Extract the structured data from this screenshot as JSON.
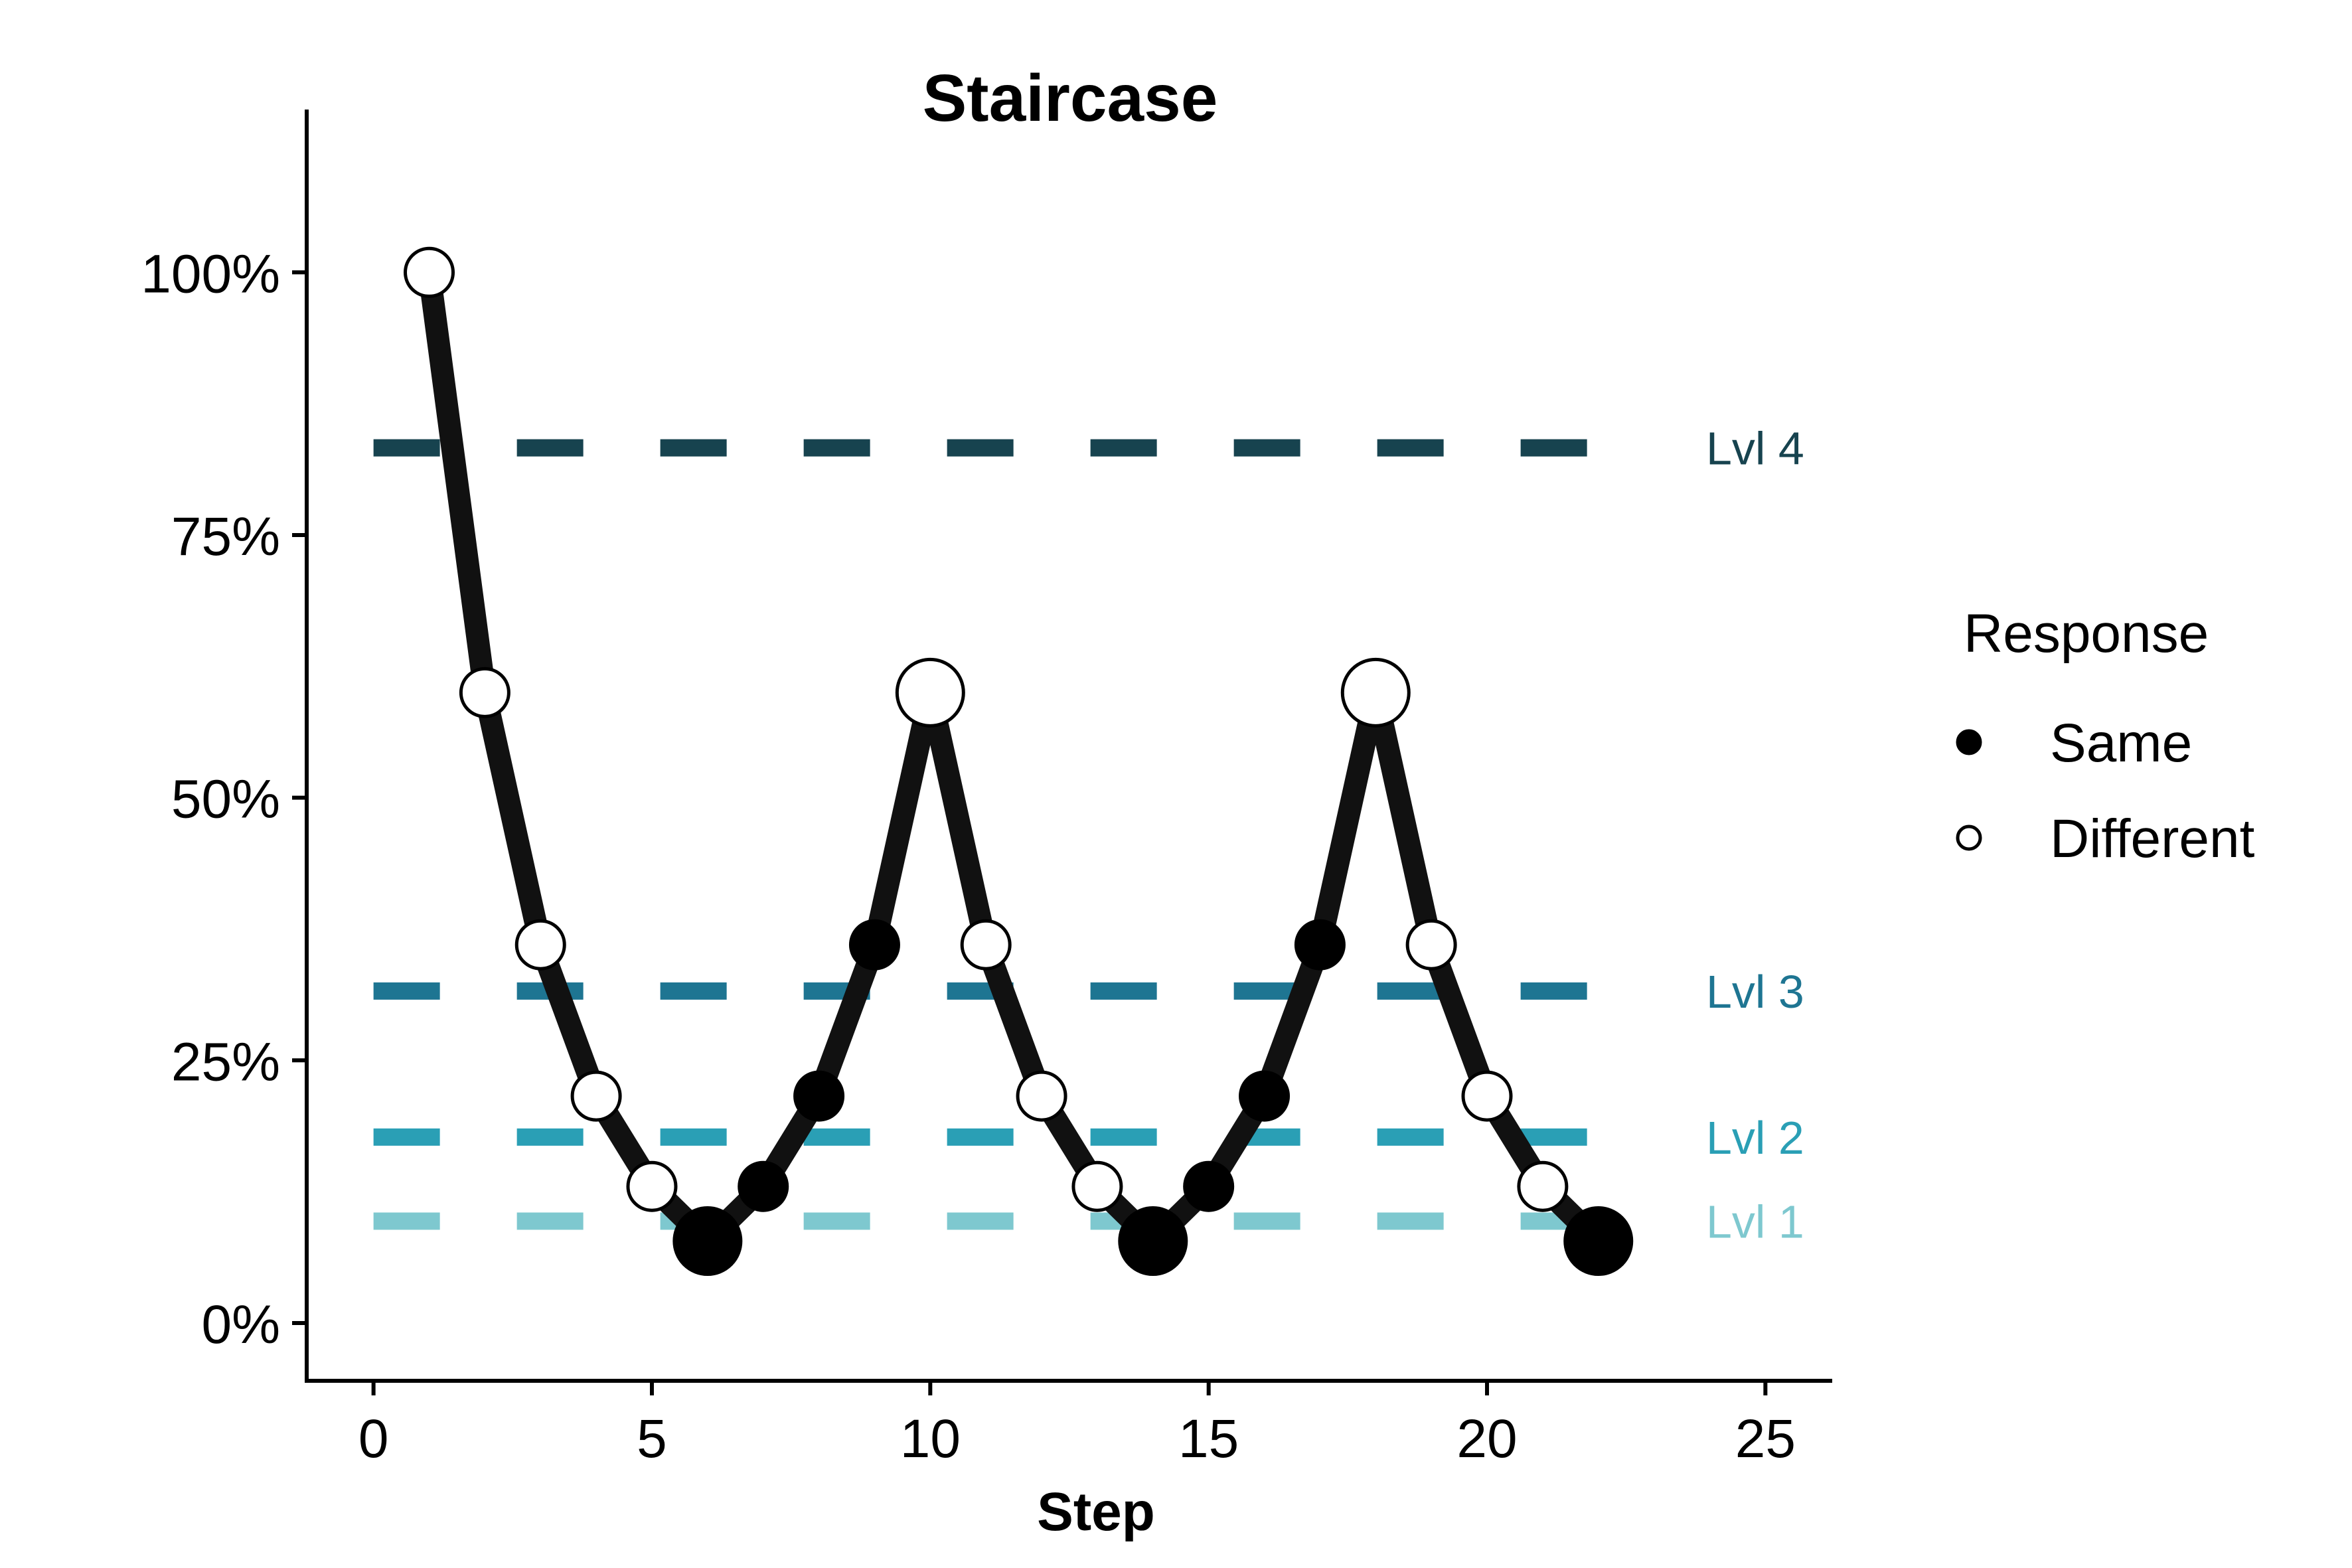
{
  "chart_data": {
    "type": "line",
    "title": "Staircase",
    "xlabel": "Step",
    "ylabel": "",
    "xlim": [
      -1.2,
      26.2
    ],
    "ylim": [
      -0.055,
      1.155
    ],
    "x_ticks": [
      0,
      5,
      10,
      15,
      20,
      25
    ],
    "x_tick_labels": [
      "0",
      "5",
      "10",
      "15",
      "20",
      "25"
    ],
    "y_ticks": [
      0,
      0.25,
      0.5,
      0.75,
      1.0
    ],
    "y_tick_labels": [
      "0%",
      "25%",
      "50%",
      "75%",
      "100%"
    ],
    "grid": false,
    "series": [
      {
        "x": [
          1,
          2,
          3,
          4,
          5,
          6,
          7,
          8,
          9,
          10,
          11,
          12,
          13,
          14,
          15,
          16,
          17,
          18,
          19,
          20,
          21,
          22
        ],
        "y": [
          1.0,
          0.6,
          0.36,
          0.216,
          0.13,
          0.078,
          0.13,
          0.216,
          0.36,
          0.6,
          0.36,
          0.216,
          0.13,
          0.078,
          0.13,
          0.216,
          0.36,
          0.6,
          0.36,
          0.216,
          0.13,
          0.078
        ],
        "response": [
          "Different",
          "Different",
          "Different",
          "Different",
          "Different",
          "Same",
          "Same",
          "Same",
          "Same",
          "Different",
          "Different",
          "Different",
          "Different",
          "Same",
          "Same",
          "Same",
          "Same",
          "Different",
          "Different",
          "Different",
          "Different",
          "Same"
        ],
        "point_size": [
          "medium",
          "medium",
          "medium",
          "medium",
          "medium",
          "large",
          "medium",
          "medium",
          "medium",
          "large",
          "medium",
          "medium",
          "medium",
          "large",
          "medium",
          "medium",
          "medium",
          "large",
          "medium",
          "medium",
          "medium",
          "large"
        ],
        "color": "#111111"
      }
    ],
    "reference_lines": [
      {
        "label": "Lvl 4",
        "y": 0.833,
        "x_range": [
          0,
          22
        ],
        "color": "#17434f"
      },
      {
        "label": "Lvl 3",
        "y": 0.316,
        "x_range": [
          0,
          22
        ],
        "color": "#1e7592"
      },
      {
        "label": "Lvl 2",
        "y": 0.177,
        "x_range": [
          0,
          22
        ],
        "color": "#2a9fb5"
      },
      {
        "label": "Lvl 1",
        "y": 0.097,
        "x_range": [
          0,
          22
        ],
        "color": "#7ec8cf"
      }
    ],
    "legend": {
      "title": "Response",
      "position": "right",
      "entries": [
        {
          "label": "Same",
          "marker": "filled-circle",
          "fill": "#000000"
        },
        {
          "label": "Different",
          "marker": "open-circle",
          "fill": "#ffffff"
        }
      ]
    }
  }
}
